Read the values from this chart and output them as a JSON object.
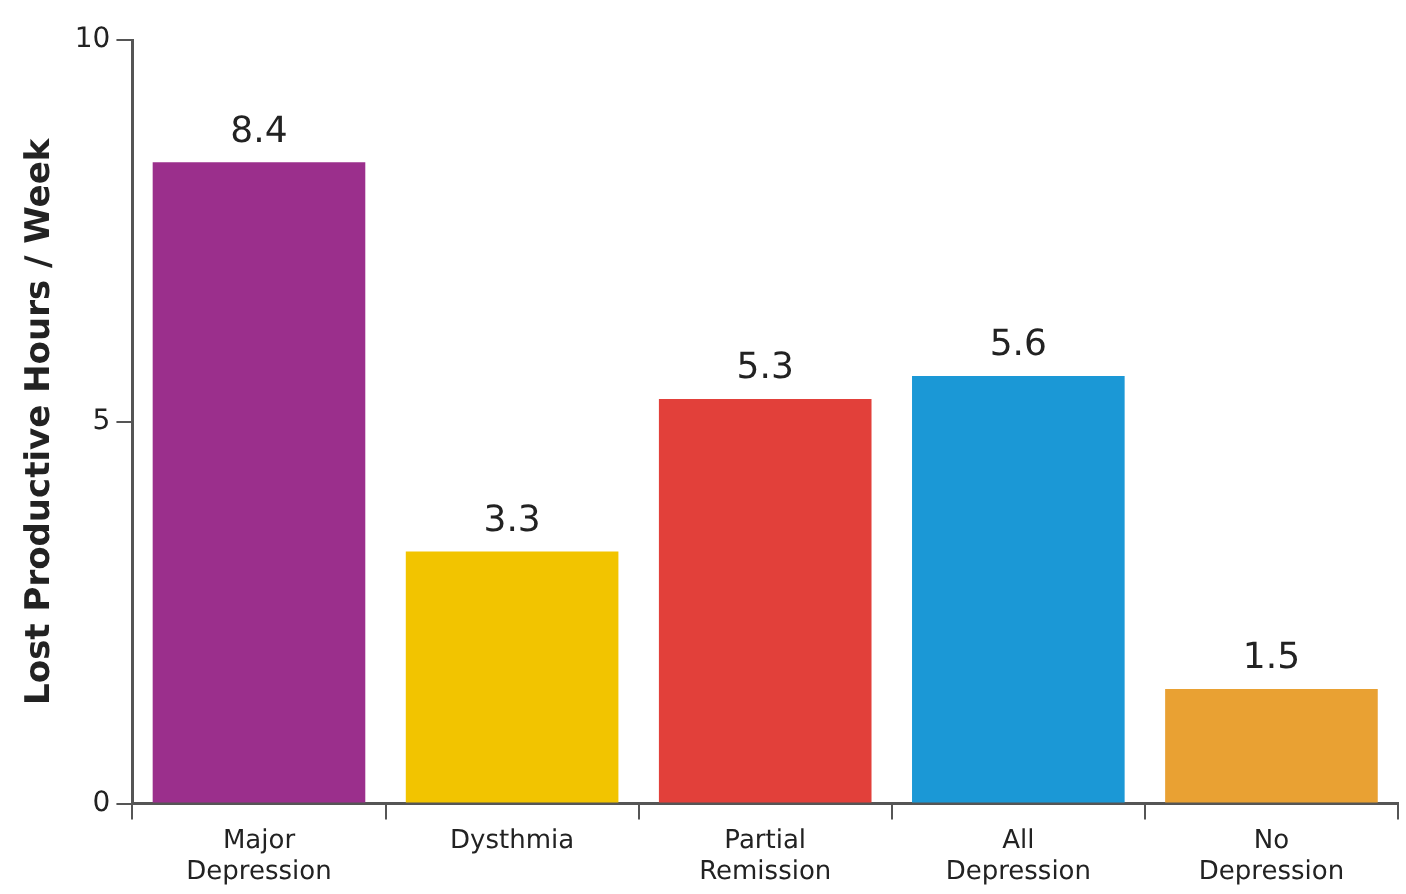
{
  "chart_data": {
    "type": "bar",
    "ylabel": "Lost Productive Hours / Week",
    "categories": [
      "Major Depression",
      "Dysthmia",
      "Partial Remission",
      "All Depression",
      "No Depression"
    ],
    "values": [
      8.4,
      3.3,
      5.3,
      5.6,
      1.5
    ],
    "colors": [
      "#9b2f8c",
      "#f2c400",
      "#e2403a",
      "#1b98d6",
      "#e9a133"
    ],
    "ylim": [
      0,
      10
    ],
    "yticks": [
      0,
      5,
      10
    ],
    "grid": false,
    "legend": false,
    "data_labels": true
  }
}
